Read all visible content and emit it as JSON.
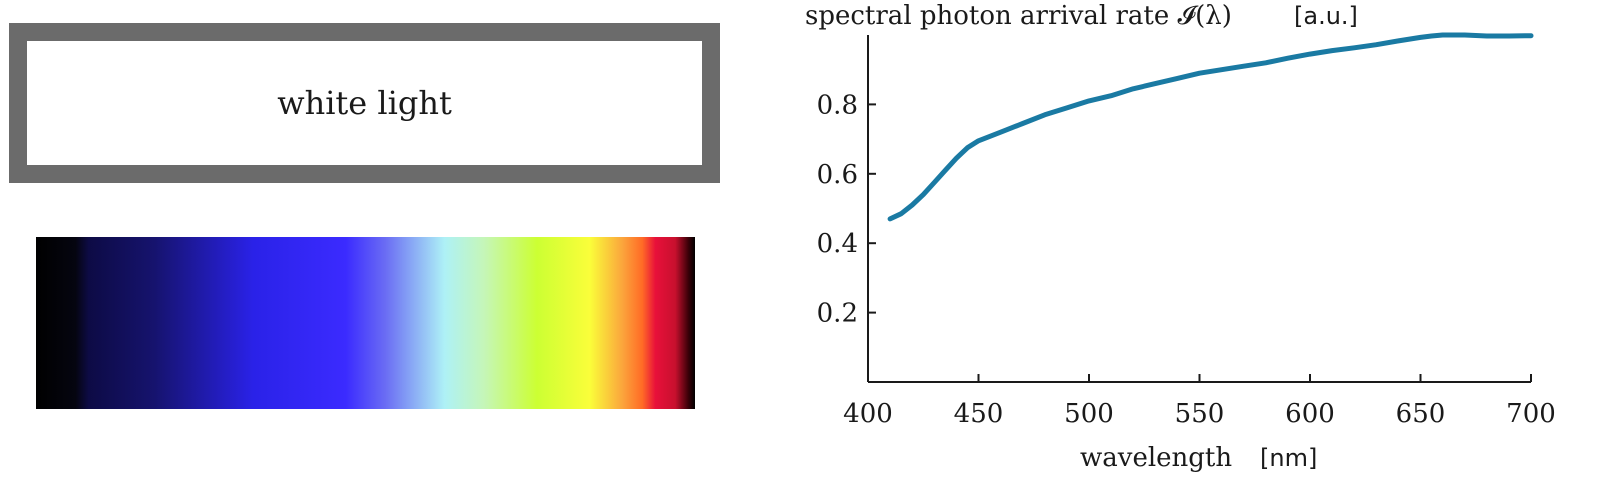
{
  "panel": {
    "source_label": "white light"
  },
  "chart_data": {
    "type": "line",
    "title": "spectral photon arrival rate 𝓘(λ)",
    "title_unit": "[a.u.]",
    "xlabel": "wavelength",
    "xlabel_unit": "[nm]",
    "xlim": [
      400,
      700
    ],
    "ylim": [
      0,
      1
    ],
    "x_ticks": [
      400,
      450,
      500,
      550,
      600,
      650,
      700
    ],
    "x_tick_labels": [
      "400",
      "450",
      "500",
      "550",
      "600",
      "650",
      "700"
    ],
    "y_ticks": [
      0.2,
      0.4,
      0.6,
      0.8
    ],
    "y_tick_labels": [
      "0.2",
      "0.4",
      "0.6",
      "0.8"
    ],
    "grid": false,
    "line_color": "#1a7aa3",
    "series": [
      {
        "x": [
          410,
          415,
          420,
          425,
          430,
          435,
          440,
          445,
          450,
          460,
          470,
          480,
          490,
          500,
          510,
          520,
          530,
          540,
          550,
          560,
          570,
          580,
          590,
          600,
          610,
          620,
          630,
          640,
          650,
          655,
          660,
          665,
          670,
          680,
          690,
          700
        ],
        "y": [
          0.47,
          0.485,
          0.51,
          0.54,
          0.575,
          0.61,
          0.645,
          0.675,
          0.695,
          0.72,
          0.745,
          0.77,
          0.79,
          0.81,
          0.825,
          0.845,
          0.86,
          0.875,
          0.89,
          0.9,
          0.91,
          0.92,
          0.933,
          0.945,
          0.955,
          0.963,
          0.972,
          0.983,
          0.993,
          0.997,
          1.0,
          1.0,
          1.0,
          0.997,
          0.997,
          0.998
        ]
      }
    ]
  }
}
